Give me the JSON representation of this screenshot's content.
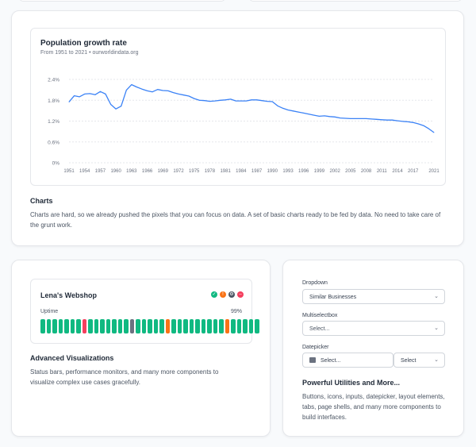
{
  "chart_section": {
    "title": "Charts",
    "description": "Charts are hard, so we already pushed the pixels that you can focus on data. A set of basic charts ready to be fed by data. No need to take care of the grunt work."
  },
  "chart_data": {
    "type": "line",
    "title": "Population growth rate",
    "subtitle": "From 1951 to 2021 • ourworldindata.org",
    "xlabel": "",
    "ylabel": "",
    "x": [
      1951,
      1952,
      1953,
      1954,
      1955,
      1956,
      1957,
      1958,
      1959,
      1960,
      1961,
      1962,
      1963,
      1964,
      1965,
      1966,
      1967,
      1968,
      1969,
      1970,
      1971,
      1972,
      1973,
      1974,
      1975,
      1976,
      1977,
      1978,
      1979,
      1980,
      1981,
      1982,
      1983,
      1984,
      1985,
      1986,
      1987,
      1988,
      1989,
      1990,
      1991,
      1992,
      1993,
      1994,
      1995,
      1996,
      1997,
      1998,
      1999,
      2000,
      2001,
      2002,
      2003,
      2004,
      2005,
      2006,
      2007,
      2008,
      2009,
      2010,
      2011,
      2012,
      2013,
      2014,
      2015,
      2016,
      2017,
      2018,
      2019,
      2020,
      2021
    ],
    "values": [
      1.75,
      1.93,
      1.9,
      1.98,
      1.99,
      1.96,
      2.05,
      1.98,
      1.68,
      1.55,
      1.63,
      2.09,
      2.25,
      2.18,
      2.12,
      2.07,
      2.04,
      2.11,
      2.08,
      2.07,
      2.02,
      1.98,
      1.95,
      1.92,
      1.85,
      1.8,
      1.79,
      1.77,
      1.78,
      1.8,
      1.81,
      1.83,
      1.78,
      1.78,
      1.78,
      1.81,
      1.81,
      1.79,
      1.77,
      1.76,
      1.64,
      1.57,
      1.52,
      1.49,
      1.46,
      1.43,
      1.4,
      1.37,
      1.34,
      1.35,
      1.33,
      1.32,
      1.29,
      1.28,
      1.27,
      1.27,
      1.27,
      1.27,
      1.26,
      1.25,
      1.24,
      1.23,
      1.23,
      1.21,
      1.19,
      1.18,
      1.16,
      1.12,
      1.07,
      0.98,
      0.87
    ],
    "yticks": [
      "0%",
      "0.6%",
      "1.2%",
      "1.8%",
      "2.4%"
    ],
    "ytick_values": [
      0,
      0.6,
      1.2,
      1.8,
      2.4
    ],
    "xticks": [
      "1951",
      "1954",
      "1957",
      "1960",
      "1963",
      "1966",
      "1969",
      "1972",
      "1975",
      "1978",
      "1981",
      "1984",
      "1987",
      "1990",
      "1993",
      "1996",
      "1999",
      "2002",
      "2005",
      "2008",
      "2011",
      "2014",
      "2017",
      "2021"
    ],
    "xtick_values": [
      1951,
      1954,
      1957,
      1960,
      1963,
      1966,
      1969,
      1972,
      1975,
      1978,
      1981,
      1984,
      1987,
      1990,
      1993,
      1996,
      1999,
      2002,
      2005,
      2008,
      2011,
      2014,
      2017,
      2021
    ],
    "ylim": [
      0,
      2.4
    ],
    "xlim": [
      1951,
      2021
    ],
    "grid": true,
    "color": "#3b82f6"
  },
  "viz_section": {
    "shop_title": "Lena's Webshop",
    "uptime_label": "Uptime",
    "uptime_value": "99%",
    "status_icons": [
      {
        "name": "check-circle-icon",
        "color": "#10b981",
        "glyph": "✓"
      },
      {
        "name": "warning-circle-icon",
        "color": "#f97316",
        "glyph": "!"
      },
      {
        "name": "gear-icon",
        "color": "#4b5563",
        "glyph": "⚙"
      },
      {
        "name": "minus-circle-icon",
        "color": "#f43f5e",
        "glyph": "–"
      }
    ],
    "uptime_bars": [
      "g",
      "g",
      "g",
      "g",
      "g",
      "g",
      "g",
      "r",
      "g",
      "g",
      "g",
      "g",
      "g",
      "g",
      "g",
      "k",
      "g",
      "g",
      "g",
      "g",
      "g",
      "o",
      "g",
      "g",
      "g",
      "g",
      "g",
      "g",
      "g",
      "g",
      "g",
      "o",
      "g",
      "g",
      "g",
      "g",
      "g"
    ],
    "bar_colors": {
      "g": "#10b981",
      "r": "#f43f5e",
      "o": "#f97316",
      "k": "#6b7280"
    },
    "title": "Advanced Visualizations",
    "description": "Status bars, performance monitors, and many more components to visualize complex use cases gracefully."
  },
  "util_section": {
    "dropdown_label": "Dropdown",
    "dropdown_value": "Similar Businesses",
    "multiselect_label": "Multiselectbox",
    "multiselect_placeholder": "Select...",
    "datepicker_label": "Datepicker",
    "datepicker_placeholder": "Select...",
    "datepicker_range_placeholder": "Select",
    "title": "Powerful Utilities and More...",
    "description": "Buttons, icons, inputs, datepicker, layout elements, tabs, page shells, and many more components to build interfaces."
  }
}
